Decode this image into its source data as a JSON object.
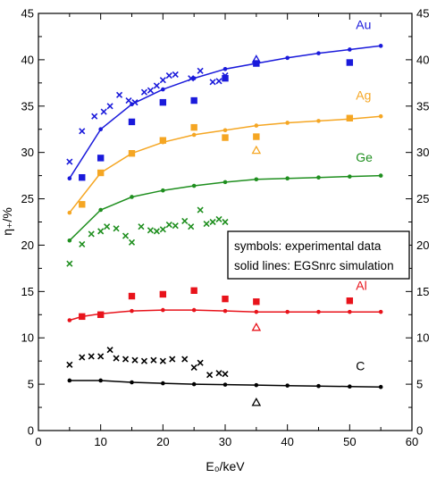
{
  "chart_data": {
    "type": "line",
    "xlabel": "E₀/keV",
    "ylabel": "η₊/%",
    "xlim": [
      0,
      60
    ],
    "ylim": [
      0,
      45
    ],
    "x_ticks": [
      "0",
      "10",
      "20",
      "30",
      "40",
      "50",
      "60"
    ],
    "y_ticks": [
      "0",
      "5",
      "10",
      "15",
      "20",
      "25",
      "30",
      "35",
      "40",
      "45"
    ],
    "legend_note": [
      "symbols: experimental data",
      "solid lines: EGSnrc simulation"
    ],
    "series": [
      {
        "name": "Au",
        "color": "#1a1adb",
        "sim": [
          [
            5,
            27.2
          ],
          [
            10,
            32.5
          ],
          [
            15,
            35.2
          ],
          [
            20,
            36.8
          ],
          [
            25,
            38.0
          ],
          [
            30,
            39.0
          ],
          [
            35,
            39.6
          ],
          [
            40,
            40.2
          ],
          [
            45,
            40.7
          ],
          [
            50,
            41.1
          ],
          [
            55,
            41.5
          ]
        ],
        "cross": [
          [
            5,
            29.0
          ],
          [
            7,
            32.3
          ],
          [
            9,
            33.9
          ],
          [
            10.5,
            34.4
          ],
          [
            11.5,
            35.0
          ],
          [
            13,
            36.2
          ],
          [
            14.5,
            35.6
          ],
          [
            15.5,
            35.4
          ],
          [
            17,
            36.5
          ],
          [
            18,
            36.7
          ],
          [
            19,
            37.2
          ],
          [
            20,
            37.8
          ],
          [
            21,
            38.3
          ],
          [
            22,
            38.4
          ],
          [
            24.5,
            38.0
          ],
          [
            26,
            38.8
          ],
          [
            28,
            37.6
          ],
          [
            29,
            37.7
          ],
          [
            30,
            38.3
          ]
        ],
        "square": [
          [
            7,
            27.3
          ],
          [
            10,
            29.4
          ],
          [
            15,
            33.3
          ],
          [
            20,
            35.4
          ],
          [
            25,
            35.6
          ],
          [
            30,
            38.0
          ],
          [
            35,
            39.6
          ],
          [
            50,
            39.7
          ]
        ],
        "triangle": [
          [
            35,
            40.0
          ]
        ]
      },
      {
        "name": "Ag",
        "color": "#f5a623",
        "sim": [
          [
            5,
            23.5
          ],
          [
            10,
            27.8
          ],
          [
            15,
            29.9
          ],
          [
            20,
            31.1
          ],
          [
            25,
            31.9
          ],
          [
            30,
            32.4
          ],
          [
            35,
            32.9
          ],
          [
            40,
            33.2
          ],
          [
            45,
            33.4
          ],
          [
            50,
            33.6
          ],
          [
            55,
            33.9
          ]
        ],
        "square": [
          [
            7,
            24.4
          ],
          [
            10,
            27.8
          ],
          [
            15,
            29.9
          ],
          [
            20,
            31.3
          ],
          [
            25,
            32.7
          ],
          [
            30,
            31.6
          ],
          [
            35,
            31.7
          ],
          [
            50,
            33.7
          ]
        ],
        "triangle": [
          [
            35,
            30.2
          ]
        ]
      },
      {
        "name": "Ge",
        "color": "#1f8f1f",
        "sim": [
          [
            5,
            20.5
          ],
          [
            10,
            23.8
          ],
          [
            15,
            25.2
          ],
          [
            20,
            25.9
          ],
          [
            25,
            26.4
          ],
          [
            30,
            26.8
          ],
          [
            35,
            27.1
          ],
          [
            40,
            27.2
          ],
          [
            45,
            27.3
          ],
          [
            50,
            27.4
          ],
          [
            55,
            27.5
          ]
        ],
        "cross": [
          [
            5,
            18.0
          ],
          [
            7,
            20.1
          ],
          [
            8.5,
            21.2
          ],
          [
            10,
            21.5
          ],
          [
            11,
            22.0
          ],
          [
            12.5,
            21.8
          ],
          [
            14,
            21.0
          ],
          [
            15,
            20.3
          ],
          [
            16.5,
            22.0
          ],
          [
            18,
            21.6
          ],
          [
            19,
            21.5
          ],
          [
            20,
            21.7
          ],
          [
            21,
            22.2
          ],
          [
            22,
            22.1
          ],
          [
            23.5,
            22.6
          ],
          [
            24.5,
            22.0
          ],
          [
            26,
            23.8
          ],
          [
            27,
            22.3
          ],
          [
            28,
            22.5
          ],
          [
            29,
            22.8
          ],
          [
            30,
            22.5
          ]
        ],
        "square": []
      },
      {
        "name": "Al",
        "color": "#e8131b",
        "sim": [
          [
            5,
            11.9
          ],
          [
            7,
            12.3
          ],
          [
            10,
            12.6
          ],
          [
            15,
            12.9
          ],
          [
            20,
            13.0
          ],
          [
            25,
            13.0
          ],
          [
            30,
            12.9
          ],
          [
            35,
            12.8
          ],
          [
            40,
            12.8
          ],
          [
            45,
            12.8
          ],
          [
            50,
            12.8
          ],
          [
            55,
            12.8
          ]
        ],
        "square": [
          [
            7,
            12.3
          ],
          [
            10,
            12.5
          ],
          [
            15,
            14.5
          ],
          [
            20,
            14.7
          ],
          [
            25,
            15.1
          ],
          [
            30,
            14.2
          ],
          [
            35,
            13.9
          ],
          [
            50,
            14.0
          ]
        ],
        "triangle": [
          [
            35,
            11.1
          ]
        ]
      },
      {
        "name": "C",
        "color": "#000000",
        "sim": [
          [
            5,
            5.4
          ],
          [
            10,
            5.4
          ],
          [
            15,
            5.2
          ],
          [
            20,
            5.1
          ],
          [
            25,
            5.0
          ],
          [
            30,
            4.95
          ],
          [
            35,
            4.9
          ],
          [
            40,
            4.85
          ],
          [
            45,
            4.8
          ],
          [
            50,
            4.75
          ],
          [
            55,
            4.7
          ]
        ],
        "cross": [
          [
            5,
            7.1
          ],
          [
            7,
            7.9
          ],
          [
            8.5,
            8.0
          ],
          [
            10,
            8.0
          ],
          [
            11.5,
            8.7
          ],
          [
            12.5,
            7.8
          ],
          [
            14,
            7.7
          ],
          [
            15.5,
            7.6
          ],
          [
            17,
            7.5
          ],
          [
            18.5,
            7.6
          ],
          [
            20,
            7.5
          ],
          [
            21.5,
            7.7
          ],
          [
            23.5,
            7.7
          ],
          [
            25,
            6.8
          ],
          [
            26,
            7.3
          ],
          [
            27.5,
            6.0
          ],
          [
            29,
            6.2
          ],
          [
            30,
            6.1
          ]
        ],
        "square": [],
        "triangle": [
          [
            35,
            3.0
          ]
        ]
      }
    ],
    "series_labels": [
      {
        "name": "Au",
        "x": 51,
        "y": 43.3
      },
      {
        "name": "Ag",
        "x": 51,
        "y": 35.7
      },
      {
        "name": "Ge",
        "x": 51,
        "y": 29.0
      },
      {
        "name": "Al",
        "x": 51,
        "y": 15.2
      },
      {
        "name": "C",
        "x": 51,
        "y": 6.5
      }
    ]
  }
}
